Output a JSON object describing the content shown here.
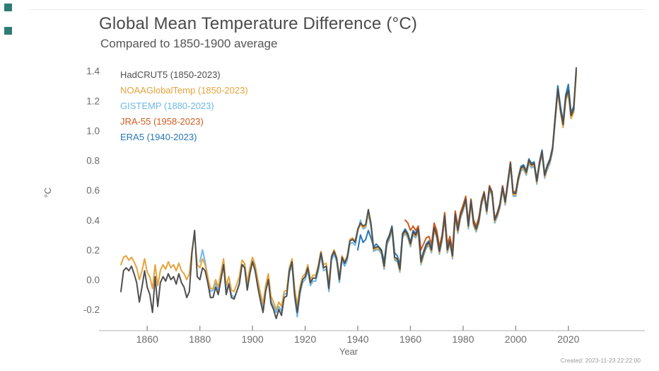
{
  "page": {
    "title": "Global Mean Temperature Difference (°C)",
    "subtitle": "Compared to 1850-1900 average",
    "created": "Created: 2023-11-23 22:22:00"
  },
  "colors": {
    "hadcrut5": "#4f4f4f",
    "noaa": "#E6A33C",
    "gistemp": "#6FB7E8",
    "jra55": "#D05B1E",
    "era5": "#2878B8",
    "axis_line": "#cccccc",
    "tick": "#999999",
    "corner_marker": "#2e7d74"
  },
  "chart_data": {
    "type": "line",
    "title": "Global Mean Temperature Difference (°C)",
    "subtitle": "Compared to 1850-1900 average",
    "xlabel": "Year",
    "ylabel": "°C",
    "x_range": [
      1850,
      2023
    ],
    "ylim": [
      -0.35,
      1.45
    ],
    "x_ticks": [
      1860,
      1880,
      1900,
      1920,
      1940,
      1960,
      1980,
      2000,
      2020
    ],
    "y_ticks": [
      "1.4",
      "1.2",
      "1.0",
      "0.8",
      "0.6",
      "0.4",
      "0.2",
      "0.0",
      "-0.2"
    ],
    "y_tick_values": [
      1.4,
      1.2,
      1.0,
      0.8,
      0.6,
      0.4,
      0.2,
      0.0,
      -0.2
    ],
    "grid": false,
    "legend_position": "top-left-inside",
    "series": [
      {
        "name": "gistemp",
        "label": "GISTEMP (1880-2023)",
        "color": "#6FB7E8",
        "start_year": 1880,
        "values": [
          0.12,
          0.2,
          0.12,
          0.02,
          -0.08,
          -0.07,
          -0.02,
          -0.08,
          0.03,
          0.12,
          -0.08,
          -0.02,
          -0.1,
          -0.12,
          -0.08,
          -0.02,
          0.1,
          0.1,
          -0.05,
          0.05,
          0.13,
          0.08,
          -0.03,
          -0.12,
          -0.2,
          -0.06,
          0.02,
          -0.14,
          -0.18,
          -0.22,
          -0.18,
          -0.21,
          -0.1,
          -0.09,
          0.04,
          0.1,
          -0.12,
          -0.25,
          -0.1,
          -0.02,
          0.0,
          0.06,
          -0.04,
          -0.01,
          -0.01,
          0.06,
          0.16,
          0.06,
          0.07,
          -0.08,
          0.13,
          0.17,
          0.12,
          -0.02,
          0.13,
          0.09,
          0.13,
          0.24,
          0.25,
          0.23,
          0.32,
          0.4,
          0.34,
          0.35,
          0.44,
          0.35,
          0.19,
          0.2,
          0.2,
          0.17,
          0.07,
          0.23,
          0.27,
          0.33,
          0.13,
          0.12,
          0.05,
          0.28,
          0.31,
          0.28,
          0.22,
          0.3,
          0.28,
          0.32,
          0.1,
          0.16,
          0.21,
          0.23,
          0.18,
          0.33,
          0.28,
          0.17,
          0.26,
          0.41,
          0.18,
          0.24,
          0.14,
          0.42,
          0.31,
          0.41,
          0.46,
          0.52,
          0.34,
          0.51,
          0.36,
          0.32,
          0.38,
          0.5,
          0.56,
          0.44,
          0.6,
          0.56,
          0.38,
          0.42,
          0.48,
          0.6,
          0.5,
          0.63,
          0.76,
          0.56,
          0.56,
          0.66,
          0.73,
          0.74,
          0.7,
          0.78,
          0.75,
          0.76,
          0.64,
          0.76,
          0.84,
          0.68,
          0.74,
          0.78,
          0.86,
          1.07,
          1.3,
          1.16,
          1.06,
          1.24,
          1.3,
          1.12,
          1.16,
          1.4
        ]
      },
      {
        "name": "era5",
        "label": "ERA5 (1940-2023)",
        "color": "#2878B8",
        "start_year": 1940,
        "values": [
          0.2,
          0.3,
          0.25,
          0.27,
          0.33,
          0.28,
          0.22,
          0.24,
          0.22,
          0.2,
          0.12,
          0.26,
          0.3,
          0.36,
          0.18,
          0.16,
          0.1,
          0.31,
          0.34,
          0.31,
          0.25,
          0.33,
          0.31,
          0.35,
          0.13,
          0.19,
          0.24,
          0.26,
          0.21,
          0.36,
          0.31,
          0.2,
          0.29,
          0.44,
          0.21,
          0.27,
          0.17,
          0.45,
          0.34,
          0.44,
          0.49,
          0.55,
          0.37,
          0.54,
          0.39,
          0.35,
          0.41,
          0.53,
          0.59,
          0.47,
          0.63,
          0.59,
          0.41,
          0.45,
          0.51,
          0.63,
          0.53,
          0.66,
          0.79,
          0.59,
          0.59,
          0.69,
          0.76,
          0.77,
          0.73,
          0.81,
          0.78,
          0.79,
          0.67,
          0.79,
          0.87,
          0.71,
          0.77,
          0.81,
          0.89,
          1.1,
          1.3,
          1.16,
          1.06,
          1.24,
          1.31,
          1.12,
          1.16,
          1.38
        ]
      },
      {
        "name": "jra55",
        "label": "JRA-55 (1958-2023)",
        "color": "#D05B1E",
        "start_year": 1958,
        "values": [
          0.4,
          0.38,
          0.33,
          0.36,
          0.33,
          0.36,
          0.2,
          0.24,
          0.28,
          0.29,
          0.24,
          0.38,
          0.33,
          0.22,
          0.3,
          0.45,
          0.24,
          0.29,
          0.2,
          0.46,
          0.36,
          0.45,
          0.5,
          0.56,
          0.38,
          0.54,
          0.4,
          0.36,
          0.42,
          0.53,
          0.59,
          0.47,
          0.63,
          0.59,
          0.41,
          0.45,
          0.51,
          0.63,
          0.53,
          0.66,
          0.79,
          0.59,
          0.59,
          0.69,
          0.75,
          0.76,
          0.72,
          0.8,
          0.77,
          0.78,
          0.66,
          0.78,
          0.86,
          0.7,
          0.76,
          0.8,
          0.88,
          1.08,
          1.27,
          1.13,
          1.03,
          1.21,
          1.26,
          1.09,
          1.13,
          1.4
        ]
      },
      {
        "name": "noaa",
        "label": "NOAAGlobalTemp (1850-2023)",
        "color": "#E6A33C",
        "start_year": 1850,
        "values": [
          0.1,
          0.15,
          0.16,
          0.13,
          0.15,
          0.12,
          0.08,
          0.0,
          0.06,
          0.14,
          0.05,
          0.02,
          -0.06,
          0.1,
          -0.04,
          0.06,
          0.1,
          0.07,
          0.12,
          0.08,
          0.1,
          0.06,
          0.11,
          0.06,
          0.04,
          0.0,
          0.04,
          0.2,
          0.3,
          0.1,
          0.08,
          0.14,
          0.1,
          0.02,
          -0.06,
          -0.06,
          0.0,
          -0.05,
          0.05,
          0.14,
          -0.04,
          0.02,
          -0.07,
          -0.08,
          -0.03,
          0.02,
          0.13,
          0.11,
          -0.02,
          0.08,
          0.15,
          0.1,
          0.0,
          -0.09,
          -0.16,
          -0.04,
          0.04,
          -0.11,
          -0.15,
          -0.2,
          -0.15,
          -0.18,
          -0.08,
          -0.07,
          0.08,
          0.14,
          -0.06,
          -0.17,
          -0.05,
          0.02,
          0.04,
          0.1,
          0.0,
          0.03,
          0.03,
          0.1,
          0.19,
          0.1,
          0.11,
          -0.03,
          0.16,
          0.2,
          0.15,
          0.02,
          0.16,
          0.12,
          0.16,
          0.27,
          0.28,
          0.26,
          0.33,
          0.37,
          0.35,
          0.36,
          0.45,
          0.37,
          0.2,
          0.21,
          0.21,
          0.18,
          0.08,
          0.24,
          0.28,
          0.34,
          0.14,
          0.13,
          0.06,
          0.29,
          0.32,
          0.29,
          0.23,
          0.31,
          0.29,
          0.33,
          0.11,
          0.17,
          0.22,
          0.24,
          0.19,
          0.34,
          0.29,
          0.18,
          0.27,
          0.42,
          0.19,
          0.25,
          0.15,
          0.43,
          0.32,
          0.42,
          0.47,
          0.53,
          0.35,
          0.52,
          0.37,
          0.33,
          0.39,
          0.51,
          0.57,
          0.45,
          0.61,
          0.57,
          0.39,
          0.43,
          0.49,
          0.61,
          0.51,
          0.64,
          0.77,
          0.57,
          0.57,
          0.67,
          0.74,
          0.75,
          0.71,
          0.79,
          0.76,
          0.77,
          0.65,
          0.77,
          0.85,
          0.69,
          0.75,
          0.79,
          0.87,
          1.06,
          1.26,
          1.12,
          1.02,
          1.2,
          1.25,
          1.08,
          1.12,
          1.38
        ]
      },
      {
        "name": "hadcrut5",
        "label": "HadCRUT5 (1850-2023)",
        "color": "#4f4f4f",
        "start_year": 1850,
        "values": [
          -0.08,
          0.06,
          0.08,
          0.06,
          0.09,
          0.04,
          -0.02,
          -0.15,
          -0.05,
          0.06,
          -0.05,
          -0.1,
          -0.22,
          0.02,
          -0.18,
          -0.02,
          0.02,
          -0.01,
          0.04,
          0.0,
          0.02,
          -0.03,
          0.04,
          -0.02,
          -0.05,
          -0.12,
          -0.08,
          0.18,
          0.33,
          0.02,
          0.0,
          0.08,
          0.06,
          -0.02,
          -0.12,
          -0.12,
          -0.05,
          -0.1,
          0.0,
          0.1,
          -0.1,
          -0.03,
          -0.12,
          -0.13,
          -0.08,
          -0.03,
          0.1,
          0.08,
          -0.07,
          0.04,
          0.12,
          0.06,
          -0.05,
          -0.14,
          -0.22,
          -0.08,
          0.0,
          -0.16,
          -0.2,
          -0.26,
          -0.2,
          -0.24,
          -0.12,
          -0.11,
          0.06,
          0.12,
          -0.1,
          -0.22,
          -0.08,
          0.0,
          0.02,
          0.08,
          -0.02,
          0.01,
          0.01,
          0.08,
          0.18,
          0.08,
          0.09,
          -0.06,
          0.15,
          0.19,
          0.14,
          0.0,
          0.15,
          0.11,
          0.15,
          0.26,
          0.27,
          0.25,
          0.34,
          0.38,
          0.36,
          0.37,
          0.47,
          0.38,
          0.21,
          0.22,
          0.22,
          0.19,
          0.09,
          0.25,
          0.29,
          0.35,
          0.15,
          0.14,
          0.07,
          0.3,
          0.33,
          0.3,
          0.24,
          0.32,
          0.3,
          0.34,
          0.12,
          0.18,
          0.23,
          0.25,
          0.2,
          0.35,
          0.3,
          0.19,
          0.28,
          0.43,
          0.2,
          0.26,
          0.16,
          0.44,
          0.33,
          0.43,
          0.48,
          0.54,
          0.36,
          0.53,
          0.38,
          0.34,
          0.4,
          0.52,
          0.58,
          0.46,
          0.62,
          0.58,
          0.4,
          0.44,
          0.5,
          0.62,
          0.52,
          0.65,
          0.78,
          0.58,
          0.58,
          0.68,
          0.75,
          0.76,
          0.72,
          0.8,
          0.77,
          0.78,
          0.66,
          0.78,
          0.86,
          0.7,
          0.76,
          0.8,
          0.88,
          1.08,
          1.28,
          1.14,
          1.04,
          1.22,
          1.27,
          1.1,
          1.14,
          1.42
        ]
      }
    ],
    "legend_order": [
      "hadcrut5",
      "noaa",
      "gistemp",
      "jra55",
      "era5"
    ]
  }
}
